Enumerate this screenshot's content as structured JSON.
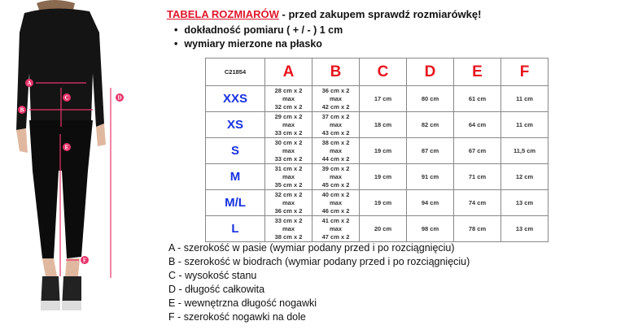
{
  "header": {
    "title_red": "TABELA ROZMIARÓW",
    "title_rest": " - przed zakupem sprawdź rozmiarówkę!",
    "bullets": [
      "dokładność pomiaru ( + / - ) 1 cm",
      "wymiary mierzone na płasko"
    ]
  },
  "figure": {
    "markers": [
      "A",
      "B",
      "C",
      "D",
      "E",
      "F"
    ],
    "accent": "#e8336b"
  },
  "table": {
    "code": "C21854",
    "columns": [
      "A",
      "B",
      "C",
      "D",
      "E",
      "F"
    ],
    "rows": [
      {
        "size": "XXS",
        "a": [
          "28 cm x 2",
          "max",
          "32 cm x 2"
        ],
        "b": [
          "36 cm x 2",
          "max",
          "42 cm x 2"
        ],
        "c": "17 cm",
        "d": "80 cm",
        "e": "61 cm",
        "f": "11 cm"
      },
      {
        "size": "XS",
        "a": [
          "29 cm x 2",
          "max",
          "33 cm x 2"
        ],
        "b": [
          "37 cm x 2",
          "max",
          "43 cm x 2"
        ],
        "c": "18 cm",
        "d": "82 cm",
        "e": "64 cm",
        "f": "11 cm"
      },
      {
        "size": "S",
        "a": [
          "30 cm x 2",
          "max",
          "33 cm x 2"
        ],
        "b": [
          "38 cm x 2",
          "max",
          "44 cm x 2"
        ],
        "c": "19 cm",
        "d": "87 cm",
        "e": "67 cm",
        "f": "11,5 cm"
      },
      {
        "size": "M",
        "a": [
          "31 cm x 2",
          "max",
          "35 cm x 2"
        ],
        "b": [
          "39 cm x 2",
          "max",
          "45 cm x 2"
        ],
        "c": "19 cm",
        "d": "91 cm",
        "e": "71 cm",
        "f": "12 cm"
      },
      {
        "size": "M/L",
        "a": [
          "32 cm x 2",
          "max",
          "36 cm x 2"
        ],
        "b": [
          "40 cm x 2",
          "max",
          "46 cm x 2"
        ],
        "c": "19 cm",
        "d": "94 cm",
        "e": "74 cm",
        "f": "13 cm"
      },
      {
        "size": "L",
        "a": [
          "33 cm x 2",
          "max",
          "38 cm x 2"
        ],
        "b": [
          "41 cm x 2",
          "max",
          "47 cm x 2"
        ],
        "c": "20 cm",
        "d": "98 cm",
        "e": "78 cm",
        "f": "13 cm"
      }
    ]
  },
  "legend": [
    "A - szerokość w pasie (wymiar podany przed i po rozciągnięciu)",
    "B - szerokość w biodrach (wymiar podany przed i po rozciągnięciu)",
    "C - wysokość stanu",
    "D - długość całkowita",
    "E - wewnętrzna długość nogawki",
    "F - szerokość nogawki na dole"
  ]
}
